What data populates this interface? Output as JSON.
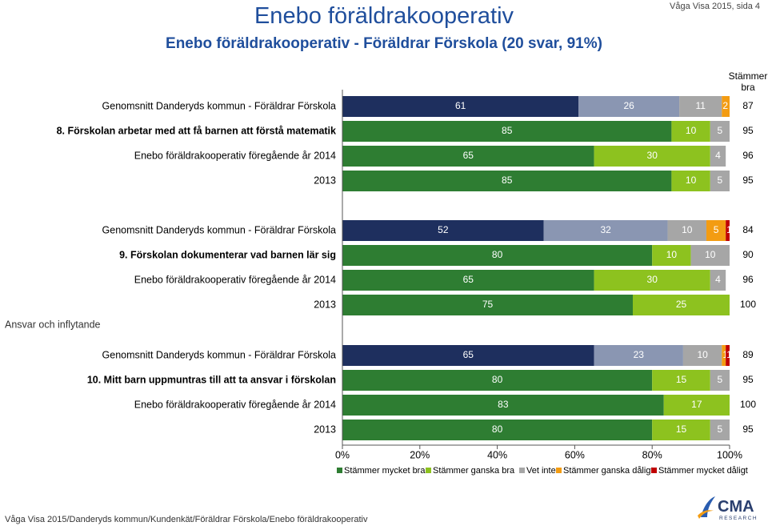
{
  "header": {
    "title": "Enebo föräldrakooperativ",
    "subtitle": "Enebo föräldrakooperativ - Föräldrar Förskola (20 svar, 91%)",
    "page_ref": "Våga Visa 2015, sida 4"
  },
  "footer": {
    "path": "Våga Visa 2015/Danderyds kommun/Kundenkät/Föräldrar Förskola/Enebo föräldrakooperativ"
  },
  "logo": {
    "text": "CMA",
    "subtext": "RESEARCH"
  },
  "chart_data": {
    "type": "bar",
    "orientation": "horizontal-stacked-percent",
    "xlim": [
      0,
      100
    ],
    "x_ticks": [
      "0%",
      "20%",
      "40%",
      "60%",
      "80%",
      "100%"
    ],
    "total_header": [
      "Stämmer",
      "bra"
    ],
    "section_label": "Ansvar och inflytande",
    "colors": [
      "#1e2f5e",
      "#8a96b2",
      "#a6a6a6",
      "#f39c12",
      "#c00000",
      "#2e7d32",
      "#8dc21f"
    ],
    "legend": [
      {
        "name": "Stämmer mycket bra",
        "color": "#2e7d32"
      },
      {
        "name": "Stämmer ganska bra",
        "color": "#8dc21f"
      },
      {
        "name": "Vet inte",
        "color": "#a6a6a6"
      },
      {
        "name": "Stämmer ganska dåligt",
        "color": "#f39c12"
      },
      {
        "name": "Stämmer mycket dåligt",
        "color": "#c00000"
      }
    ],
    "groups": [
      {
        "rows": [
          {
            "label": "Genomsnitt Danderyds kommun - Föräldrar Förskola",
            "bold": false,
            "palette": "navy",
            "values": [
              61,
              26,
              11,
              2,
              0
            ],
            "labels": [
              "61",
              "26",
              "11",
              "2",
              "0"
            ],
            "total": "87"
          },
          {
            "label": "8. Förskolan arbetar med att få barnen att förstå matematik",
            "bold": true,
            "palette": "green",
            "values": [
              85,
              10,
              5,
              0,
              0
            ],
            "labels": [
              "85",
              "10",
              "5",
              "0",
              ""
            ],
            "total": "95"
          },
          {
            "label": "Enebo föräldrakooperativ föregående år 2014",
            "bold": false,
            "palette": "green",
            "values": [
              65,
              30,
              4,
              0,
              0
            ],
            "labels": [
              "65",
              "30",
              "4",
              "0",
              ""
            ],
            "total": "96"
          },
          {
            "label": "2013",
            "bold": false,
            "palette": "green",
            "values": [
              85,
              10,
              5,
              0,
              0
            ],
            "labels": [
              "85",
              "10",
              "5",
              "0",
              ""
            ],
            "total": "95"
          }
        ]
      },
      {
        "rows": [
          {
            "label": "Genomsnitt Danderyds kommun - Föräldrar Förskola",
            "bold": false,
            "palette": "navy",
            "values": [
              52,
              32,
              10,
              5,
              1
            ],
            "labels": [
              "52",
              "32",
              "10",
              "5",
              "1"
            ],
            "total": "84"
          },
          {
            "label": "9. Förskolan dokumenterar vad barnen lär sig",
            "bold": true,
            "palette": "green",
            "values": [
              80,
              10,
              10,
              0,
              0
            ],
            "labels": [
              "80",
              "10",
              "10",
              "0",
              ""
            ],
            "total": "90"
          },
          {
            "label": "Enebo föräldrakooperativ föregående år 2014",
            "bold": false,
            "palette": "green",
            "values": [
              65,
              30,
              4,
              0,
              0
            ],
            "labels": [
              "65",
              "30",
              "4",
              "0",
              ""
            ],
            "total": "96"
          },
          {
            "label": "2013",
            "bold": false,
            "palette": "green",
            "values": [
              75,
              25,
              0,
              0,
              0
            ],
            "labels": [
              "75",
              "25",
              "0",
              "",
              ""
            ],
            "total": "100"
          }
        ]
      },
      {
        "rows": [
          {
            "label": "Genomsnitt Danderyds kommun - Föräldrar Förskola",
            "bold": false,
            "palette": "navy",
            "values": [
              65,
              23,
              10,
              1,
              1
            ],
            "labels": [
              "65",
              "23",
              "10",
              "1",
              "1"
            ],
            "total": "89"
          },
          {
            "label": "10. Mitt barn uppmuntras till att ta ansvar i förskolan",
            "bold": true,
            "palette": "green",
            "values": [
              80,
              15,
              5,
              0,
              0
            ],
            "labels": [
              "80",
              "15",
              "5",
              "0",
              ""
            ],
            "total": "95"
          },
          {
            "label": "Enebo föräldrakooperativ föregående år 2014",
            "bold": false,
            "palette": "green",
            "values": [
              83,
              17,
              0,
              0,
              0
            ],
            "labels": [
              "83",
              "17",
              "0",
              "",
              ""
            ],
            "total": "100"
          },
          {
            "label": "2013",
            "bold": false,
            "palette": "green",
            "values": [
              80,
              15,
              5,
              0,
              0
            ],
            "labels": [
              "80",
              "15",
              "5",
              "0",
              ""
            ],
            "total": "95"
          }
        ]
      }
    ]
  }
}
